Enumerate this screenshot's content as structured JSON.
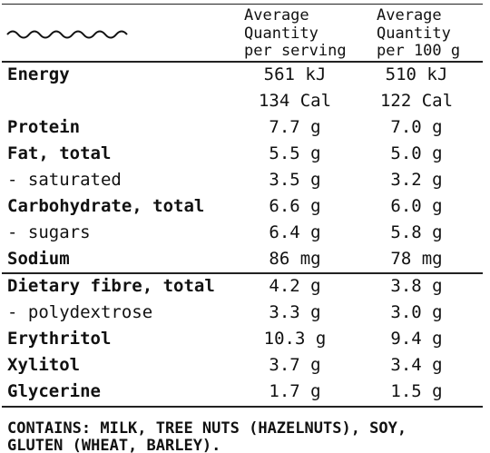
{
  "header": {
    "columns": [
      [
        "Average",
        "Quantity",
        "per serving"
      ],
      [
        "Average",
        "Quantity",
        "per 100 g"
      ]
    ]
  },
  "groups": [
    [
      {
        "label": "Energy",
        "bold": true,
        "values": [
          [
            "561 kJ",
            "134 Cal"
          ],
          [
            "510 kJ",
            "122 Cal"
          ]
        ]
      },
      {
        "label": "Protein",
        "bold": true,
        "values": [
          [
            "7.7 g"
          ],
          [
            "7.0 g"
          ]
        ]
      },
      {
        "label": "Fat, total",
        "bold": true,
        "values": [
          [
            "5.5 g"
          ],
          [
            "5.0 g"
          ]
        ]
      },
      {
        "label": "- saturated",
        "bold": false,
        "values": [
          [
            "3.5 g"
          ],
          [
            "3.2 g"
          ]
        ]
      },
      {
        "label": "Carbohydrate, total",
        "bold": true,
        "values": [
          [
            "6.6 g"
          ],
          [
            "6.0 g"
          ]
        ]
      },
      {
        "label": "- sugars",
        "bold": false,
        "values": [
          [
            "6.4 g"
          ],
          [
            "5.8 g"
          ]
        ]
      },
      {
        "label": "Sodium",
        "bold": true,
        "values": [
          [
            "86 mg"
          ],
          [
            "78 mg"
          ]
        ]
      }
    ],
    [
      {
        "label": "Dietary fibre, total",
        "bold": true,
        "values": [
          [
            "4.2 g"
          ],
          [
            "3.8 g"
          ]
        ]
      },
      {
        "label": "- polydextrose",
        "bold": false,
        "values": [
          [
            "3.3 g"
          ],
          [
            "3.0 g"
          ]
        ]
      },
      {
        "label": "Erythritol",
        "bold": true,
        "values": [
          [
            "10.3 g"
          ],
          [
            "9.4 g"
          ]
        ]
      },
      {
        "label": "Xylitol",
        "bold": true,
        "values": [
          [
            "3.7 g"
          ],
          [
            "3.4 g"
          ]
        ]
      },
      {
        "label": "Glycerine",
        "bold": true,
        "values": [
          [
            "1.7 g"
          ],
          [
            "1.5 g"
          ]
        ]
      }
    ]
  ],
  "footer": {
    "lines": [
      "CONTAINS: MILK, TREE NUTS (HAZELNUTS), SOY,",
      "GLUTEN (WHEAT, BARLEY)."
    ]
  }
}
